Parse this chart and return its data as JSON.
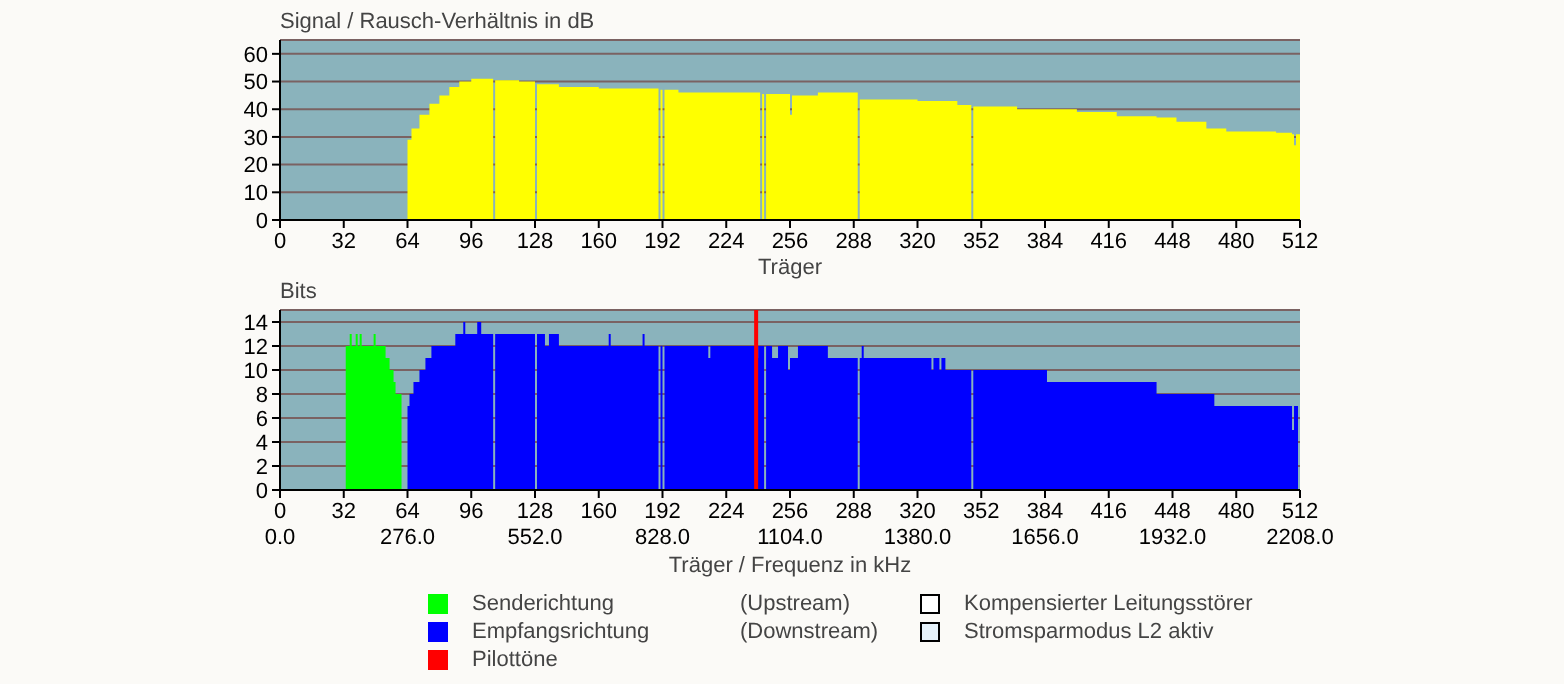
{
  "chart_data": [
    {
      "type": "area",
      "ylabel": "Signal / Rausch-Verhältnis in dB",
      "xlabel": "Träger",
      "xlim": [
        0,
        512
      ],
      "xticks": [
        0,
        32,
        64,
        96,
        128,
        160,
        192,
        224,
        256,
        288,
        320,
        352,
        384,
        416,
        448,
        480,
        512
      ],
      "ylim": [
        0,
        65
      ],
      "yticks": [
        0,
        10,
        20,
        30,
        40,
        50,
        60
      ],
      "grid": "y",
      "series": [
        {
          "color": "#ffff00",
          "x": [
            0,
            64,
            66,
            70,
            75,
            80,
            85,
            90,
            96,
            107,
            108,
            120,
            128,
            129,
            140,
            160,
            180,
            190,
            191,
            192,
            193,
            200,
            224,
            241,
            242,
            243,
            244,
            256,
            257,
            270,
            290,
            291,
            320,
            340,
            347,
            348,
            370,
            390,
            400,
            420,
            440,
            450,
            465,
            475,
            500,
            508,
            509,
            510,
            512
          ],
          "values": [
            0,
            29,
            33,
            38,
            42,
            45,
            48,
            50,
            51,
            0,
            50.5,
            50,
            0,
            49,
            48,
            47.5,
            47.5,
            0,
            47,
            0,
            47,
            46,
            46,
            0,
            45.5,
            0,
            45.5,
            38,
            45,
            46,
            0,
            43.5,
            43,
            41.5,
            0,
            41,
            40,
            40,
            39,
            37.5,
            37,
            35.5,
            33,
            32,
            31.5,
            31,
            27,
            31,
            31
          ]
        }
      ]
    },
    {
      "type": "area",
      "ylabel": "Bits",
      "xlabel": "Träger / Frequenz in kHz",
      "xlim": [
        0,
        512
      ],
      "xticks": [
        0,
        32,
        64,
        96,
        128,
        160,
        192,
        224,
        256,
        288,
        320,
        352,
        384,
        416,
        448,
        480,
        512
      ],
      "x2lim": [
        0,
        2208
      ],
      "x2ticks": [
        {
          "value": 0,
          "label": "0.0"
        },
        {
          "value": 276,
          "label": "276.0"
        },
        {
          "value": 552,
          "label": "552.0"
        },
        {
          "value": 828,
          "label": "828.0"
        },
        {
          "value": 1104,
          "label": "1104.0"
        },
        {
          "value": 1380,
          "label": "1380.0"
        },
        {
          "value": 1656,
          "label": "1656.0"
        },
        {
          "value": 1932,
          "label": "1932.0"
        },
        {
          "value": 2208,
          "label": "2208.0"
        }
      ],
      "ylim": [
        0,
        15
      ],
      "yticks": [
        0,
        2,
        4,
        6,
        8,
        10,
        12,
        14
      ],
      "grid": "y",
      "legend": "bottom",
      "series": [
        {
          "name": "Senderichtung",
          "color": "#00ff00",
          "x": [
            33,
            35,
            36,
            38,
            39,
            40,
            41,
            47,
            48,
            53,
            55,
            57,
            58,
            61
          ],
          "values": [
            12,
            13,
            12,
            13,
            12,
            13,
            12,
            13,
            12,
            11,
            10,
            9,
            8,
            0
          ]
        },
        {
          "name": "Empfangsrichtung",
          "color": "#0000ff",
          "x": [
            64,
            65,
            67,
            70,
            73,
            76,
            88,
            92,
            93,
            99,
            101,
            107,
            108,
            128,
            129,
            133,
            135,
            140,
            165,
            166,
            182,
            183,
            190,
            191,
            192,
            193,
            215,
            216,
            239,
            240,
            243,
            244,
            247,
            250,
            255,
            256,
            260,
            275,
            290,
            291,
            292,
            293,
            327,
            328,
            331,
            332,
            334,
            347,
            348,
            385,
            440,
            469,
            508,
            509,
            511
          ],
          "values": [
            7,
            8,
            9,
            10,
            11,
            12,
            13,
            14,
            13,
            14,
            13,
            0,
            13,
            0,
            13,
            12,
            13,
            12,
            13,
            12,
            13,
            12,
            0,
            12,
            0,
            12,
            11,
            12,
            11,
            12,
            0,
            12,
            11,
            12,
            10,
            11,
            12,
            11,
            0,
            11,
            12,
            11,
            10,
            11,
            10,
            11,
            10,
            0,
            10,
            9,
            8,
            7,
            5,
            7,
            7
          ]
        }
      ],
      "ref_lines": [
        {
          "axis": "x",
          "value": 239,
          "label": "Pilottöne",
          "color": "#ff0000"
        }
      ],
      "annotations": [
        "(Upstream)",
        "(Downstream)",
        "Kompensierter Leitungsstörer",
        "Stromsparmodus L2 aktiv"
      ]
    }
  ]
}
